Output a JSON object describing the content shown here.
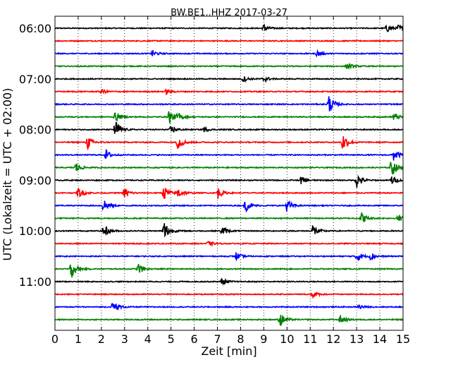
{
  "chart_data": {
    "type": "line",
    "title": "BW.BE1..HHZ 2017-03-27",
    "xlabel": "Zeit  [min]",
    "ylabel": "UTC (Lokalzeit = UTC + 02:00)",
    "xlim": [
      0,
      15
    ],
    "x_ticks": [
      "0",
      "1",
      "2",
      "3",
      "4",
      "5",
      "6",
      "7",
      "8",
      "9",
      "10",
      "11",
      "12",
      "13",
      "14",
      "15"
    ],
    "y_ticks": [
      "06:00",
      "07:00",
      "08:00",
      "09:00",
      "10:00",
      "11:00"
    ],
    "grid": "vertical dotted",
    "trace_color_cycle": [
      "#000000",
      "#ff0000",
      "#0000ff",
      "#008000"
    ],
    "traces": [
      {
        "start": "06:00",
        "events": [
          {
            "t": 9.0,
            "amp": 0.5
          },
          {
            "t": 14.3,
            "amp": 0.5
          },
          {
            "t": 14.8,
            "amp": 0.4
          }
        ]
      },
      {
        "start": "06:15",
        "events": []
      },
      {
        "start": "06:30",
        "events": [
          {
            "t": 4.2,
            "amp": 0.4
          },
          {
            "t": 11.3,
            "amp": 0.4
          }
        ]
      },
      {
        "start": "06:45",
        "events": [
          {
            "t": 12.6,
            "amp": 0.4
          }
        ]
      },
      {
        "start": "07:00",
        "events": [
          {
            "t": 8.1,
            "amp": 0.4
          },
          {
            "t": 9.0,
            "amp": 0.4
          }
        ]
      },
      {
        "start": "07:15",
        "events": [
          {
            "t": 2.0,
            "amp": 0.3
          },
          {
            "t": 4.8,
            "amp": 0.3
          }
        ]
      },
      {
        "start": "07:30",
        "events": [
          {
            "t": 11.8,
            "amp": 1.2
          }
        ]
      },
      {
        "start": "07:45",
        "events": [
          {
            "t": 2.6,
            "amp": 0.6
          },
          {
            "t": 4.9,
            "amp": 1.0
          },
          {
            "t": 5.3,
            "amp": 0.5
          },
          {
            "t": 14.6,
            "amp": 0.5
          }
        ]
      },
      {
        "start": "08:00",
        "events": [
          {
            "t": 2.6,
            "amp": 1.2
          },
          {
            "t": 5.0,
            "amp": 0.5
          },
          {
            "t": 6.4,
            "amp": 0.3
          }
        ]
      },
      {
        "start": "08:15",
        "events": [
          {
            "t": 1.4,
            "amp": 0.9
          },
          {
            "t": 5.3,
            "amp": 0.9
          },
          {
            "t": 12.4,
            "amp": 1.2
          }
        ]
      },
      {
        "start": "08:30",
        "events": [
          {
            "t": 2.2,
            "amp": 0.6
          },
          {
            "t": 14.6,
            "amp": 0.8
          }
        ]
      },
      {
        "start": "08:45",
        "events": [
          {
            "t": 0.9,
            "amp": 0.7
          },
          {
            "t": 14.5,
            "amp": 1.2
          }
        ]
      },
      {
        "start": "09:00",
        "events": [
          {
            "t": 10.6,
            "amp": 0.5
          },
          {
            "t": 13.0,
            "amp": 1.0
          },
          {
            "t": 14.5,
            "amp": 0.6
          }
        ]
      },
      {
        "start": "09:15",
        "events": [
          {
            "t": 1.0,
            "amp": 0.7
          },
          {
            "t": 3.0,
            "amp": 0.7
          },
          {
            "t": 4.7,
            "amp": 0.9
          },
          {
            "t": 5.3,
            "amp": 0.7
          },
          {
            "t": 7.0,
            "amp": 0.8
          }
        ]
      },
      {
        "start": "09:30",
        "events": [
          {
            "t": 2.1,
            "amp": 1.0
          },
          {
            "t": 8.2,
            "amp": 0.8
          },
          {
            "t": 10.0,
            "amp": 0.8
          }
        ]
      },
      {
        "start": "09:45",
        "events": [
          {
            "t": 13.2,
            "amp": 0.8
          },
          {
            "t": 14.8,
            "amp": 0.5
          }
        ]
      },
      {
        "start": "10:00",
        "events": [
          {
            "t": 2.1,
            "amp": 0.9
          },
          {
            "t": 4.7,
            "amp": 1.4
          },
          {
            "t": 7.2,
            "amp": 0.6
          },
          {
            "t": 11.1,
            "amp": 0.9
          }
        ]
      },
      {
        "start": "10:15",
        "events": [
          {
            "t": 6.6,
            "amp": 0.3
          }
        ]
      },
      {
        "start": "10:30",
        "events": [
          {
            "t": 7.8,
            "amp": 0.5
          },
          {
            "t": 13.0,
            "amp": 0.8
          },
          {
            "t": 13.6,
            "amp": 0.5
          }
        ]
      },
      {
        "start": "10:45",
        "events": [
          {
            "t": 0.7,
            "amp": 1.2
          },
          {
            "t": 3.6,
            "amp": 0.7
          }
        ]
      },
      {
        "start": "11:00",
        "events": [
          {
            "t": 7.2,
            "amp": 0.4
          }
        ]
      },
      {
        "start": "11:15",
        "events": [
          {
            "t": 11.1,
            "amp": 0.4
          }
        ]
      },
      {
        "start": "11:30",
        "events": [
          {
            "t": 2.5,
            "amp": 0.9
          },
          {
            "t": 13.1,
            "amp": 0.3
          }
        ]
      },
      {
        "start": "11:45",
        "events": [
          {
            "t": 9.7,
            "amp": 0.9
          },
          {
            "t": 12.3,
            "amp": 0.5
          }
        ]
      }
    ]
  }
}
